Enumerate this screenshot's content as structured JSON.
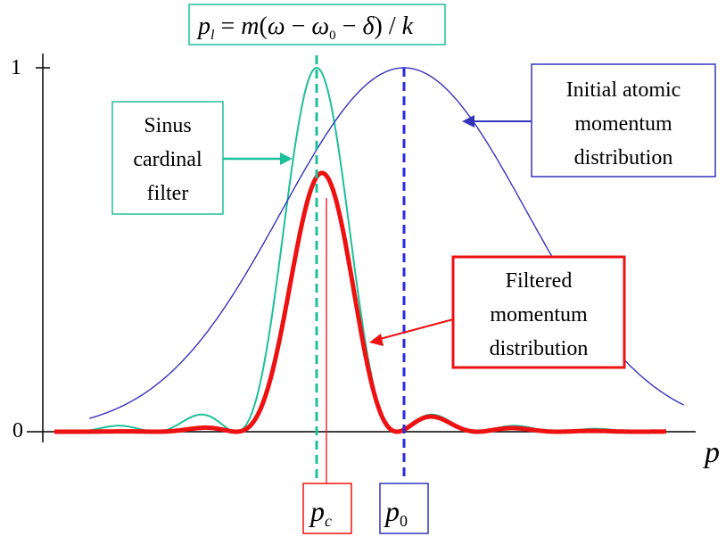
{
  "axes": {
    "x_label": "p",
    "y_ticks": [
      "1",
      "0"
    ]
  },
  "labels": {
    "formula": {
      "p": "p",
      "l": "l",
      "eq": " = ",
      "m": "m",
      "open": "(",
      "omega": "ω",
      "minus1": " − ",
      "omega0": "ω",
      "zero": "0",
      "minus2": " − ",
      "delta": "δ",
      "close": ")",
      "slash": " / ",
      "k": "k"
    },
    "sinc_filter": [
      "Sinus",
      "cardinal",
      "filter"
    ],
    "initial": [
      "Initial atomic",
      "momentum",
      "distribution"
    ],
    "filtered": [
      "Filtered",
      "momentum",
      "distribution"
    ],
    "pc": {
      "p": "p",
      "sub": "c"
    },
    "p0": {
      "p": "p",
      "sub": "0"
    }
  },
  "colors": {
    "sinc": "#1fbf9a",
    "initial": "#3333bb",
    "filtered": "#ee1111",
    "axis": "#000000"
  },
  "chart_data": {
    "type": "line",
    "x_domain": [
      -4.5,
      4.0
    ],
    "y_domain": [
      0,
      1
    ],
    "curves": {
      "initial_gaussian": {
        "center": 1.0,
        "sigma": 1.4
      },
      "sinc_filter": {
        "center": 0.0,
        "zeros_spacing": 0.92
      },
      "filtered": "sinc_filter × initial_gaussian"
    },
    "markers": {
      "pc_at": 0.0,
      "p0_at": 1.0
    }
  }
}
